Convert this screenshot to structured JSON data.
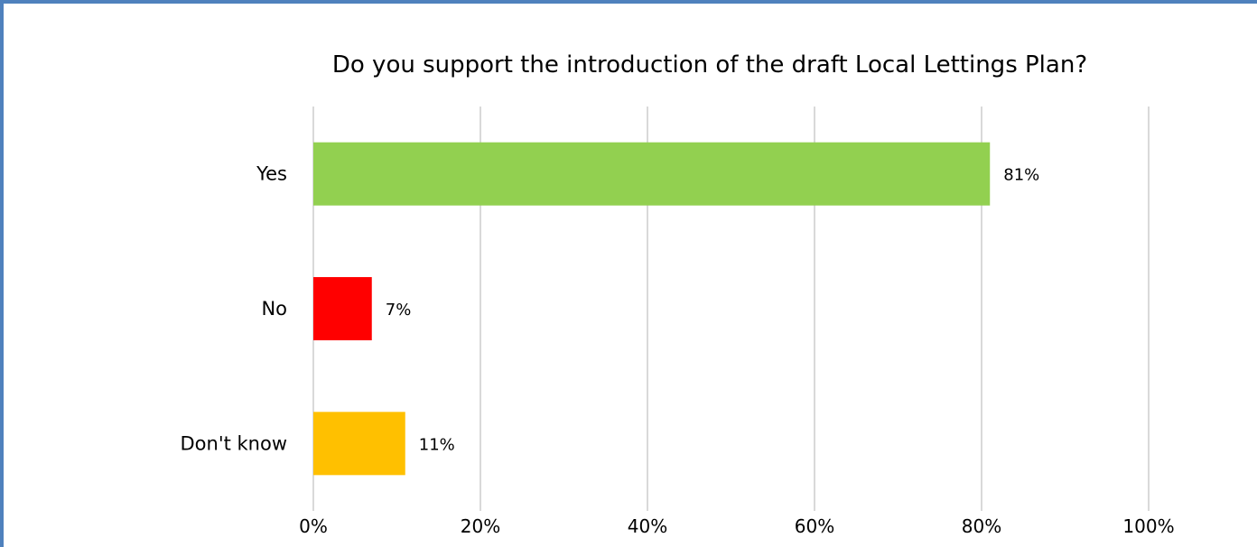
{
  "chart_data": {
    "type": "bar",
    "orientation": "horizontal",
    "title": "Do you support the introduction of the draft Local Lettings Plan?",
    "xlabel": "",
    "ylabel": "",
    "categories": [
      "Yes",
      "No",
      "Don't know"
    ],
    "values": [
      81,
      7,
      11
    ],
    "data_labels": [
      "81%",
      "7%",
      "11%"
    ],
    "colors": [
      "#92d050",
      "#ff0000",
      "#ffc000"
    ],
    "xlim": [
      0,
      100
    ],
    "ticks": [
      0,
      20,
      40,
      60,
      80,
      100
    ],
    "tick_labels": [
      "0%",
      "20%",
      "40%",
      "60%",
      "80%",
      "100%"
    ],
    "grid": true,
    "legend": "none"
  },
  "theme": {
    "frame_color": "#4f81bd",
    "grid_color": "#d9d9d9"
  }
}
